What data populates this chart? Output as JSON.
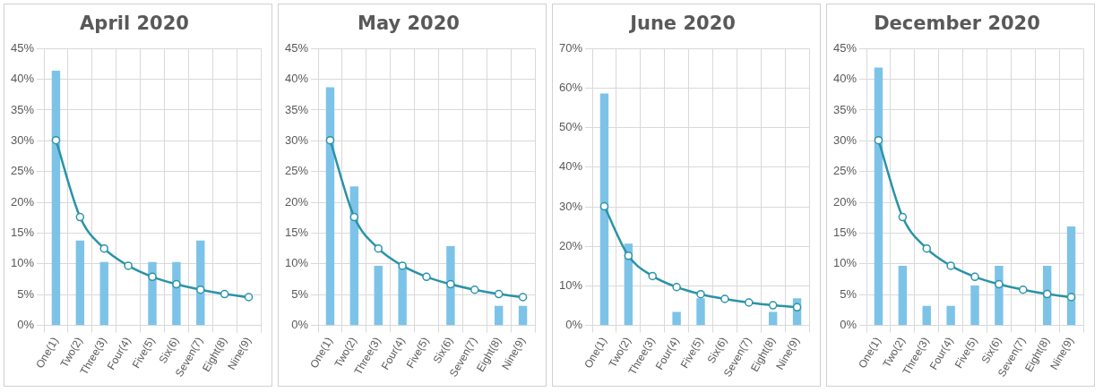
{
  "chart_data": [
    {
      "type": "bar",
      "title": "April 2020",
      "categories": [
        "One(1)",
        "Two(2)",
        "Three(3)",
        "Four(4)",
        "Five(5)",
        "Six(6)",
        "Seven(7)",
        "Eight(8)",
        "Nine(9)"
      ],
      "series": [
        {
          "color": "#7dc3e8",
          "values": [
            41.4,
            13.8,
            10.3,
            0,
            10.3,
            10.3,
            13.8,
            0,
            0
          ]
        },
        {
          "type": "line",
          "color": "#2a93a8",
          "values": [
            30.1,
            17.6,
            12.5,
            9.7,
            7.9,
            6.7,
            5.8,
            5.1,
            4.6
          ]
        }
      ],
      "ylim": [
        0,
        45
      ],
      "yticks": [
        {
          "value": 0,
          "label": "0%"
        },
        {
          "value": 5,
          "label": "5%"
        },
        {
          "value": 10,
          "label": "10%"
        },
        {
          "value": 15,
          "label": "15%"
        },
        {
          "value": 20,
          "label": "20%"
        },
        {
          "value": 25,
          "label": "25%"
        },
        {
          "value": 30,
          "label": "30%"
        },
        {
          "value": 35,
          "label": "35%"
        },
        {
          "value": 40,
          "label": "40%"
        },
        {
          "value": 45,
          "label": "45%"
        }
      ],
      "grid": true,
      "marker": "circle",
      "line_style": "solid",
      "legend": false
    },
    {
      "type": "bar",
      "title": "May 2020",
      "categories": [
        "One(1)",
        "Two(2)",
        "Three(3)",
        "Four(4)",
        "Five(5)",
        "Six(6)",
        "Seven(7)",
        "Eight(8)",
        "Nine(9)"
      ],
      "series": [
        {
          "color": "#7dc3e8",
          "values": [
            38.7,
            22.6,
            9.7,
            9.7,
            0,
            12.9,
            0,
            3.2,
            3.2
          ]
        },
        {
          "type": "line",
          "color": "#2a93a8",
          "values": [
            30.1,
            17.6,
            12.5,
            9.7,
            7.9,
            6.7,
            5.8,
            5.1,
            4.6
          ]
        }
      ],
      "ylim": [
        0,
        45
      ],
      "yticks": [
        {
          "value": 0,
          "label": "0%"
        },
        {
          "value": 5,
          "label": "5%"
        },
        {
          "value": 10,
          "label": "10%"
        },
        {
          "value": 15,
          "label": "15%"
        },
        {
          "value": 20,
          "label": "20%"
        },
        {
          "value": 25,
          "label": "25%"
        },
        {
          "value": 30,
          "label": "30%"
        },
        {
          "value": 35,
          "label": "35%"
        },
        {
          "value": 40,
          "label": "40%"
        },
        {
          "value": 45,
          "label": "45%"
        }
      ],
      "grid": true,
      "marker": "circle",
      "line_style": "solid",
      "legend": false
    },
    {
      "type": "bar",
      "title": "June 2020",
      "categories": [
        "One(1)",
        "Two(2)",
        "Three(3)",
        "Four(4)",
        "Five(5)",
        "Six(6)",
        "Seven(7)",
        "Eight(8)",
        "Nine(9)"
      ],
      "series": [
        {
          "color": "#7dc3e8",
          "values": [
            58.6,
            20.7,
            0,
            3.4,
            6.9,
            0,
            0,
            3.4,
            6.9
          ]
        },
        {
          "type": "line",
          "color": "#2a93a8",
          "values": [
            30.1,
            17.6,
            12.5,
            9.7,
            7.9,
            6.7,
            5.8,
            5.1,
            4.6
          ]
        }
      ],
      "ylim": [
        0,
        70
      ],
      "yticks": [
        {
          "value": 0,
          "label": "0%"
        },
        {
          "value": 10,
          "label": "10%"
        },
        {
          "value": 20,
          "label": "20%"
        },
        {
          "value": 30,
          "label": "30%"
        },
        {
          "value": 40,
          "label": "40%"
        },
        {
          "value": 50,
          "label": "50%"
        },
        {
          "value": 60,
          "label": "60%"
        },
        {
          "value": 70,
          "label": "70%"
        }
      ],
      "grid": true,
      "marker": "circle",
      "line_style": "solid",
      "legend": false
    },
    {
      "type": "bar",
      "title": "December 2020",
      "categories": [
        "One(1)",
        "Two(2)",
        "Three(3)",
        "Four(4)",
        "Five(5)",
        "Six(6)",
        "Seven(7)",
        "Eight(8)",
        "Nine(9)"
      ],
      "series": [
        {
          "color": "#7dc3e8",
          "values": [
            41.9,
            9.7,
            3.2,
            3.2,
            6.5,
            9.7,
            0,
            9.7,
            16.1
          ]
        },
        {
          "type": "line",
          "color": "#2a93a8",
          "values": [
            30.1,
            17.6,
            12.5,
            9.7,
            7.9,
            6.7,
            5.8,
            5.1,
            4.6
          ]
        }
      ],
      "ylim": [
        0,
        45
      ],
      "yticks": [
        {
          "value": 0,
          "label": "0%"
        },
        {
          "value": 5,
          "label": "5%"
        },
        {
          "value": 10,
          "label": "10%"
        },
        {
          "value": 15,
          "label": "15%"
        },
        {
          "value": 20,
          "label": "20%"
        },
        {
          "value": 25,
          "label": "25%"
        },
        {
          "value": 30,
          "label": "30%"
        },
        {
          "value": 35,
          "label": "35%"
        },
        {
          "value": 40,
          "label": "40%"
        },
        {
          "value": 45,
          "label": "45%"
        }
      ],
      "grid": true,
      "marker": "circle",
      "line_style": "solid",
      "legend": false
    }
  ]
}
